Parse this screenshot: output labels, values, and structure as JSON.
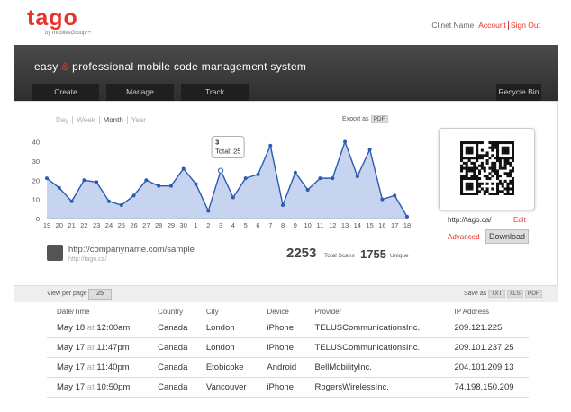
{
  "header": {
    "logo": "tago",
    "logo_sub": "by mobilesGroup™",
    "user_links": [
      "Clinet Name",
      "Account",
      "Sign Out"
    ]
  },
  "banner": {
    "title_parts": [
      "easy",
      "&",
      "professional mobile code management system"
    ]
  },
  "tabs": [
    "Create",
    "Manage",
    "Track"
  ],
  "recycle_bin": "Recycle Bin",
  "range_links": [
    "Day",
    "Week",
    "Month",
    "Year"
  ],
  "export": {
    "label": "Export as",
    "format": "PDF"
  },
  "chart_data": {
    "type": "line",
    "area": true,
    "color": "#2a5cb0",
    "fill_color": "#c6d4ef",
    "categories": [
      "19",
      "20",
      "21",
      "22",
      "23",
      "24",
      "25",
      "26",
      "27",
      "28",
      "29",
      "30",
      "1",
      "2",
      "3",
      "4",
      "5",
      "6",
      "7",
      "8",
      "9",
      "10",
      "11",
      "12",
      "13",
      "14",
      "15",
      "16",
      "17",
      "18"
    ],
    "values": [
      21,
      16,
      9,
      20,
      19,
      9,
      7,
      12,
      20,
      17,
      17,
      26,
      18,
      4,
      25,
      11,
      21,
      23,
      38,
      7,
      24,
      15,
      21,
      21,
      40,
      22,
      36,
      10,
      12,
      1
    ],
    "ylim": [
      0,
      44
    ],
    "yticks": [
      0,
      10,
      20,
      30,
      40
    ],
    "tooltip": {
      "index": 14,
      "label": "Total:"
    }
  },
  "qr": {
    "url": "http://tago.ca/",
    "edit": "Edit",
    "advanced": "Advanced",
    "download": "Download"
  },
  "code": {
    "url": "http://companyname.com/sample",
    "short_url": "http://tago.ca/"
  },
  "stats": [
    {
      "value": 2253,
      "label": "Total Scans"
    },
    {
      "value": 1755,
      "label": "Unique"
    }
  ],
  "toolbar": {
    "per_page_label": "View per page",
    "per_page": 25,
    "save_label": "Save as",
    "formats": [
      "TXT",
      "XLS",
      "PDF"
    ]
  },
  "table": {
    "columns": [
      "Date/Time",
      "Country",
      "City",
      "Device",
      "Provider",
      "IP Address"
    ],
    "at": "at",
    "rows": [
      [
        "May 18",
        "12:00am",
        "Canada",
        "London",
        "iPhone",
        "TELUSCommunicationsInc.",
        "209.121.225"
      ],
      [
        "May 17",
        "11:47pm",
        "Canada",
        "London",
        "iPhone",
        "TELUSCommunicationsInc.",
        "209.101.237.25"
      ],
      [
        "May 17",
        "11:40pm",
        "Canada",
        "Etobicoke",
        "Android",
        "BellMobilityInc.",
        "204.101.209.13"
      ],
      [
        "May 17",
        "10:50pm",
        "Canada",
        "Vancouver",
        "iPhone",
        "RogersWirelessInc.",
        "74.198.150.209"
      ]
    ]
  }
}
